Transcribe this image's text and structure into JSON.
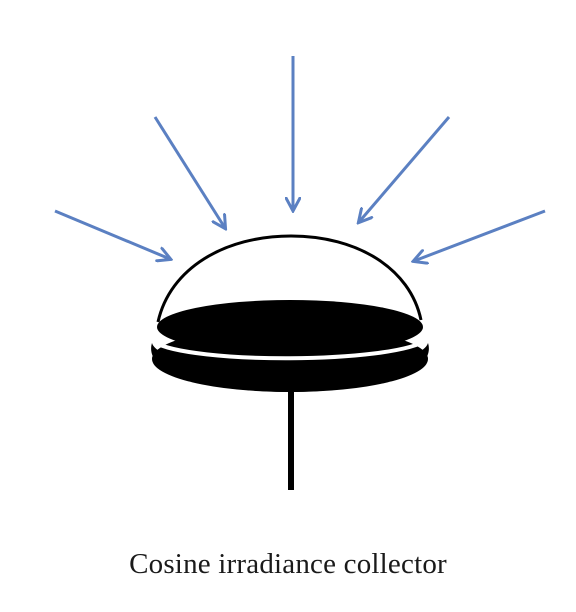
{
  "caption": "Cosine irradiance collector",
  "colors": {
    "arrow": "#5b80c2",
    "collector": "#000000",
    "background": "#ffffff"
  },
  "icons": {
    "arrows": "incoming-light-arrow-icons",
    "collector": "cosine-collector-icon"
  }
}
